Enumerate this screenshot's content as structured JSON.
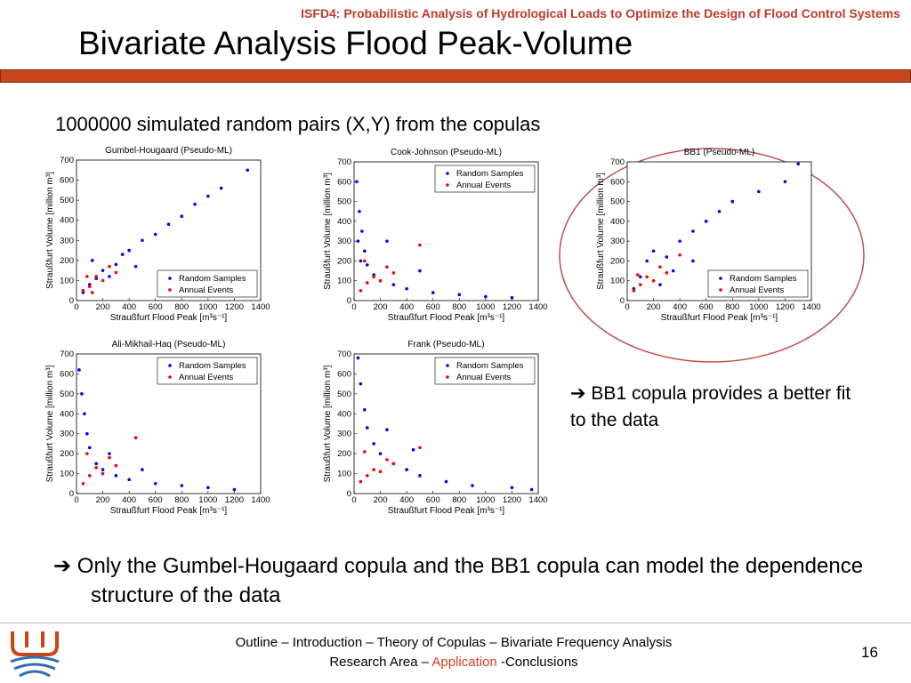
{
  "header": {
    "conference": "ISFD4: Probabilistic Analysis of Hydrological Loads to Optimize the Design of Flood Control Systems",
    "title": "Bivariate Analysis Flood Peak-Volume",
    "subtitle": "1000000 simulated random pairs (X,Y) from the copulas"
  },
  "chart_data": [
    {
      "type": "scatter",
      "title": "Gumbel-Hougaard (Pseudo-ML)",
      "xlabel": "Straußfurt Flood Peak [m³s⁻¹]",
      "ylabel": "Straußfurt Volume [million m³]",
      "xlim": [
        0,
        1400
      ],
      "ylim": [
        0,
        700
      ],
      "xticks": [
        0,
        200,
        400,
        600,
        800,
        1000,
        1200,
        1400
      ],
      "yticks": [
        0,
        100,
        200,
        300,
        400,
        500,
        600,
        700
      ],
      "legend": "lower right",
      "series": [
        {
          "name": "Random Samples",
          "color": "#0000ff",
          "x": [
            50,
            100,
            150,
            200,
            300,
            400,
            500,
            600,
            700,
            800,
            900,
            1000,
            1100,
            250,
            350,
            120,
            450,
            1300
          ],
          "values": [
            40,
            80,
            110,
            150,
            180,
            250,
            300,
            330,
            380,
            420,
            480,
            520,
            560,
            120,
            230,
            200,
            170,
            650
          ]
        },
        {
          "name": "Annual Events",
          "color": "#ff0000",
          "x": [
            50,
            100,
            150,
            200,
            250,
            300,
            80,
            120
          ],
          "values": [
            50,
            70,
            120,
            100,
            170,
            140,
            120,
            40
          ]
        }
      ]
    },
    {
      "type": "scatter",
      "title": "Cook-Johnson (Pseudo-ML)",
      "xlabel": "Straußfurt Flood Peak [m³s⁻¹]",
      "ylabel": "Straußfurt Volume [million m³]",
      "xlim": [
        0,
        1400
      ],
      "ylim": [
        0,
        700
      ],
      "xticks": [
        0,
        200,
        400,
        600,
        800,
        1000,
        1200,
        1400
      ],
      "yticks": [
        0,
        100,
        200,
        300,
        400,
        500,
        600,
        700
      ],
      "legend": "upper right",
      "series": [
        {
          "name": "Random Samples",
          "color": "#0000ff",
          "x": [
            20,
            40,
            60,
            80,
            100,
            150,
            200,
            300,
            400,
            600,
            800,
            1000,
            1200,
            30,
            50,
            250,
            500
          ],
          "values": [
            600,
            450,
            350,
            250,
            180,
            130,
            100,
            80,
            60,
            40,
            30,
            20,
            15,
            300,
            200,
            300,
            150
          ]
        },
        {
          "name": "Annual Events",
          "color": "#ff0000",
          "x": [
            50,
            100,
            150,
            200,
            250,
            300,
            80,
            500
          ],
          "values": [
            50,
            90,
            120,
            100,
            170,
            140,
            200,
            280
          ]
        }
      ]
    },
    {
      "type": "scatter",
      "title": "BB1 (Pseudo-ML)",
      "xlabel": "Straußfurt Flood Peak [m³s⁻¹]",
      "ylabel": "Straußfurt Volume [million m³]",
      "xlim": [
        0,
        1400
      ],
      "ylim": [
        0,
        700
      ],
      "xticks": [
        0,
        200,
        400,
        600,
        800,
        1000,
        1200,
        1400
      ],
      "yticks": [
        0,
        100,
        200,
        300,
        400,
        500,
        600,
        700
      ],
      "legend": "lower right",
      "series": [
        {
          "name": "Random Samples",
          "color": "#0000ff",
          "x": [
            50,
            100,
            150,
            200,
            300,
            400,
            500,
            600,
            700,
            800,
            1000,
            1200,
            1300,
            350,
            250,
            500
          ],
          "values": [
            60,
            120,
            200,
            250,
            220,
            300,
            350,
            400,
            450,
            500,
            550,
            600,
            690,
            150,
            80,
            200
          ]
        },
        {
          "name": "Annual Events",
          "color": "#ff0000",
          "x": [
            50,
            100,
            150,
            200,
            250,
            300,
            80,
            400
          ],
          "values": [
            50,
            80,
            120,
            100,
            170,
            140,
            130,
            230
          ]
        }
      ]
    },
    {
      "type": "scatter",
      "title": "Ali-Mikhail-Haq (Pseudo-ML)",
      "xlabel": "Straußfurt Flood Peak [m³s⁻¹]",
      "ylabel": "Straußfurt Volume [million m³]",
      "xlim": [
        0,
        1400
      ],
      "ylim": [
        0,
        700
      ],
      "xticks": [
        0,
        200,
        400,
        600,
        800,
        1000,
        1200,
        1400
      ],
      "yticks": [
        0,
        100,
        200,
        300,
        400,
        500,
        600,
        700
      ],
      "legend": "upper right",
      "series": [
        {
          "name": "Random Samples",
          "color": "#0000ff",
          "x": [
            20,
            40,
            60,
            80,
            100,
            150,
            200,
            300,
            400,
            600,
            800,
            1000,
            1200,
            250,
            500
          ],
          "values": [
            620,
            500,
            400,
            300,
            230,
            150,
            120,
            90,
            70,
            50,
            40,
            30,
            20,
            200,
            120
          ]
        },
        {
          "name": "Annual Events",
          "color": "#ff0000",
          "x": [
            50,
            100,
            150,
            200,
            250,
            300,
            80,
            450
          ],
          "values": [
            50,
            90,
            130,
            100,
            180,
            140,
            200,
            280
          ]
        }
      ]
    },
    {
      "type": "scatter",
      "title": "Frank (Pseudo-ML)",
      "xlabel": "Straußfurt Flood Peak [m³s⁻¹]",
      "ylabel": "Straußfurt Volume [million m³]",
      "xlim": [
        0,
        1400
      ],
      "ylim": [
        0,
        700
      ],
      "xticks": [
        0,
        200,
        400,
        600,
        800,
        1000,
        1200,
        1400
      ],
      "yticks": [
        0,
        100,
        200,
        300,
        400,
        500,
        600,
        700
      ],
      "legend": "upper right",
      "series": [
        {
          "name": "Random Samples",
          "color": "#0000ff",
          "x": [
            30,
            50,
            80,
            100,
            150,
            200,
            300,
            400,
            500,
            700,
            900,
            1200,
            1350,
            250,
            450
          ],
          "values": [
            680,
            550,
            420,
            330,
            250,
            200,
            150,
            120,
            90,
            60,
            40,
            30,
            20,
            320,
            220
          ]
        },
        {
          "name": "Annual Events",
          "color": "#ff0000",
          "x": [
            50,
            100,
            150,
            200,
            250,
            300,
            80,
            500
          ],
          "values": [
            60,
            90,
            120,
            110,
            170,
            150,
            210,
            230
          ]
        }
      ]
    }
  ],
  "notes": {
    "side": "➔ BB1 copula provides a better fit to the data",
    "bottom": "➔ Only the Gumbel-Hougaard copula and the BB1 copula can model the dependence structure of the data"
  },
  "footer": {
    "line1": "Outline – Introduction – Theory of Copulas – Bivariate Frequency Analysis",
    "line2_a": "Research Area –",
    "line2_b": "Application",
    "line2_c": "-Conclusions",
    "page": "16"
  }
}
